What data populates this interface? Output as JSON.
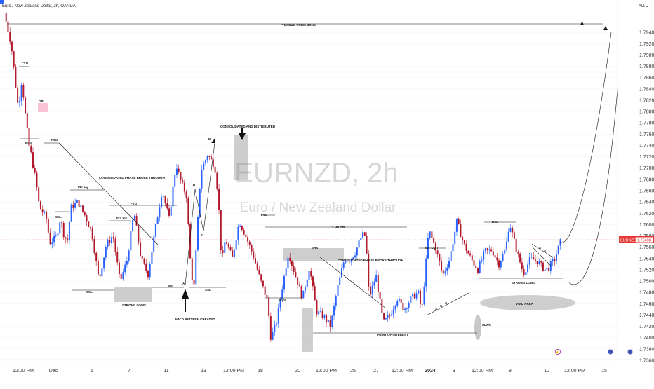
{
  "header": {
    "title": "Euro / New Zealand Dollar, 2h, OANDA",
    "currency": "NZD"
  },
  "watermark": {
    "symbol": "EURNZD, 2h",
    "name": "Euro / New Zealand Dollar"
  },
  "price_badge": {
    "symbol": "EURNZD",
    "price": "1.75698"
  },
  "colors": {
    "up": "#2962ff",
    "down": "#b2182b",
    "annotation": "#111111",
    "zone": "#bdbdbd",
    "price_line": "#e57373"
  },
  "icons": {
    "lightning": "lightning-icon",
    "event": "event-dot-icon"
  },
  "chart_data": {
    "type": "candlestick",
    "ylim": [
      1.7355,
      1.7965
    ],
    "y_ticks": [
      "1.79400",
      "1.79200",
      "1.79000",
      "1.78800",
      "1.78600",
      "1.78400",
      "1.78200",
      "1.78000",
      "1.77800",
      "1.77600",
      "1.77400",
      "1.77200",
      "1.77000",
      "1.76800",
      "1.76600",
      "1.76400",
      "1.76200",
      "1.76000",
      "1.75800",
      "1.75600",
      "1.75400",
      "1.75200",
      "1.75000",
      "1.74800",
      "1.74600",
      "1.74400",
      "1.74200",
      "1.74000",
      "1.73800",
      "1.73600"
    ],
    "x_ticks": [
      "12:00 PM",
      "Dec",
      "5",
      "7",
      "11",
      "13",
      "12:00 PM",
      "18",
      "20",
      "12:00 PM",
      "25",
      "27",
      "12:00 PM",
      "2024",
      "3",
      "12:00 PM",
      "8",
      "10",
      "12:00 PM",
      "15"
    ],
    "price_path": [
      [
        0.0,
        1.7975
      ],
      [
        0.02,
        1.7918
      ],
      [
        0.04,
        1.7805
      ],
      [
        0.05,
        1.7856
      ],
      [
        0.06,
        1.7796
      ],
      [
        0.07,
        1.774
      ],
      [
        0.075,
        1.773
      ],
      [
        0.09,
        1.7678
      ],
      [
        0.1,
        1.7632
      ],
      [
        0.12,
        1.7611
      ],
      [
        0.13,
        1.7568
      ],
      [
        0.15,
        1.758
      ],
      [
        0.16,
        1.7612
      ],
      [
        0.17,
        1.7582
      ],
      [
        0.18,
        1.757
      ],
      [
        0.19,
        1.763
      ],
      [
        0.21,
        1.764
      ],
      [
        0.23,
        1.7616
      ],
      [
        0.25,
        1.7585
      ],
      [
        0.27,
        1.75
      ],
      [
        0.29,
        1.7562
      ],
      [
        0.31,
        1.7582
      ],
      [
        0.33,
        1.7498
      ],
      [
        0.35,
        1.7537
      ],
      [
        0.37,
        1.7622
      ],
      [
        0.39,
        1.754
      ],
      [
        0.41,
        1.7512
      ],
      [
        0.43,
        1.759
      ],
      [
        0.45,
        1.7661
      ],
      [
        0.47,
        1.761
      ],
      [
        0.49,
        1.7708
      ],
      [
        0.5,
        1.7682
      ],
      [
        0.52,
        1.765
      ],
      [
        0.53,
        1.754
      ],
      [
        0.54,
        1.748
      ],
      [
        0.56,
        1.7694
      ],
      [
        0.58,
        1.7724
      ],
      [
        0.6,
        1.7704
      ],
      [
        0.61,
        1.765
      ],
      [
        0.62,
        1.753
      ],
      [
        0.63,
        1.7575
      ],
      [
        0.65,
        1.754
      ],
      [
        0.67,
        1.7606
      ],
      [
        0.69,
        1.7577
      ],
      [
        0.71,
        1.7545
      ],
      [
        0.73,
        1.7502
      ],
      [
        0.75,
        1.7466
      ],
      [
        0.76,
        1.74
      ],
      [
        0.775,
        1.7424
      ],
      [
        0.79,
        1.748
      ],
      [
        0.81,
        1.755
      ],
      [
        0.83,
        1.751
      ],
      [
        0.85,
        1.747
      ],
      [
        0.87,
        1.7525
      ],
      [
        0.89,
        1.7446
      ],
      [
        0.91,
        1.7438
      ],
      [
        0.93,
        1.742
      ],
      [
        0.95,
        1.7488
      ],
      [
        0.97,
        1.754
      ],
      [
        0.985,
        1.7538
      ],
      [
        1.0,
        1.755
      ],
      [
        1.02,
        1.7582
      ],
      [
        1.03,
        1.758
      ],
      [
        1.04,
        1.747
      ],
      [
        1.06,
        1.751
      ],
      [
        1.08,
        1.7426
      ],
      [
        1.1,
        1.744
      ],
      [
        1.12,
        1.747
      ],
      [
        1.14,
        1.745
      ],
      [
        1.16,
        1.747
      ],
      [
        1.18,
        1.748
      ],
      [
        1.19,
        1.7445
      ],
      [
        1.21,
        1.759
      ],
      [
        1.23,
        1.7558
      ],
      [
        1.25,
        1.751
      ],
      [
        1.27,
        1.754
      ],
      [
        1.29,
        1.7606
      ],
      [
        1.31,
        1.7565
      ],
      [
        1.33,
        1.754
      ],
      [
        1.35,
        1.752
      ],
      [
        1.37,
        1.7553
      ],
      [
        1.39,
        1.7555
      ],
      [
        1.41,
        1.753
      ],
      [
        1.43,
        1.756
      ],
      [
        1.44,
        1.7604
      ],
      [
        1.46,
        1.7555
      ],
      [
        1.48,
        1.7513
      ],
      [
        1.5,
        1.754
      ],
      [
        1.52,
        1.7535
      ],
      [
        1.54,
        1.752
      ],
      [
        1.55,
        1.7522
      ],
      [
        1.57,
        1.754
      ],
      [
        1.585,
        1.7569
      ]
    ],
    "projection": [
      [
        1.585,
        1.7569
      ],
      [
        1.62,
        1.7555
      ],
      [
        1.68,
        1.77
      ],
      [
        1.73,
        1.794
      ]
    ],
    "projection2": [
      [
        1.61,
        1.7497
      ],
      [
        1.67,
        1.747
      ],
      [
        1.725,
        1.762
      ],
      [
        1.76,
        1.7935
      ]
    ]
  },
  "annotations": {
    "premium_zone": "PREMIUM PRICE ZONE",
    "fvg": "FVG",
    "ob": "OB",
    "bos": "BOS",
    "int_lq": "INT LQ",
    "ssl": "SSL",
    "consolidated_broke": "CONSOLIDATED PHASE BROKE THROUGH",
    "strong_lows": "STRONG LOWS",
    "poi": "POI",
    "abcd_created": "ABCD PATTERN CREATED",
    "pt_a": "A",
    "pt_b": "B",
    "pt_c": "C",
    "pt_d": "D",
    "consolidated_distributed": "CONSOLIDATED AND DISTRIBUTED",
    "two_hr_ob": "2 HR OB",
    "shs": "SHS",
    "point_of_interest": "POINT OF INTEREST",
    "slws": "SLWS",
    "bsl": "BSL",
    "void_area": "VOID AREA",
    "mini_s": "S"
  }
}
